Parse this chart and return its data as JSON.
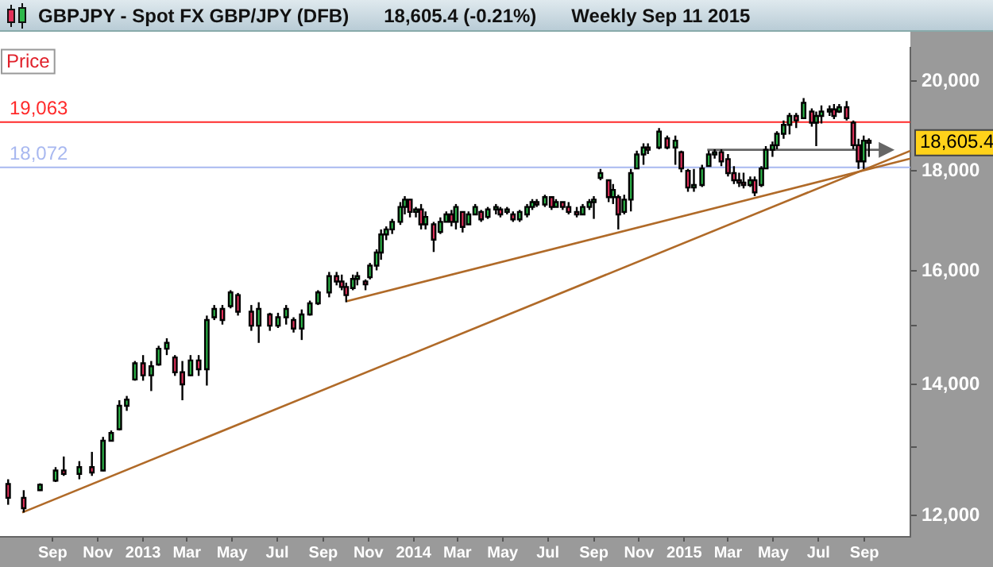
{
  "chart_data": {
    "type": "candlestick",
    "title": "GBPJPY - Spot FX GBP/JPY (DFB)",
    "subtitle": "18,605.4 (-0.21%)",
    "ylabel": "Price",
    "annotations": [
      "Weekly  Sep 11 2015",
      "18,605.4"
    ],
    "x": [
      "2012-07-03",
      "2012-07-24",
      "2012-08-15",
      "2012-09-05",
      "2012-09-16",
      "2012-10-07",
      "2012-10-24",
      "2012-11-08",
      "2012-11-19",
      "2012-11-30",
      "2012-12-10",
      "2012-12-21",
      "2013-01-01",
      "2013-01-12",
      "2013-01-22",
      "2013-02-02",
      "2013-02-13",
      "2013-02-23",
      "2013-03-06",
      "2013-03-17",
      "2013-03-28",
      "2013-04-07",
      "2013-04-18",
      "2013-04-29",
      "2013-05-09",
      "2013-05-27",
      "2013-06-06",
      "2013-06-21",
      "2013-07-02",
      "2013-07-13",
      "2013-07-23",
      "2013-08-03",
      "2013-08-14",
      "2013-08-25",
      "2013-09-09",
      "2013-09-19",
      "2013-09-26",
      "2013-10-02",
      "2013-10-11",
      "2013-10-17",
      "2013-10-28",
      "2013-11-03",
      "2013-11-12",
      "2013-11-18",
      "2013-11-25",
      "2013-12-03",
      "2013-12-14",
      "2013-12-20",
      "2013-12-27",
      "2014-01-04",
      "2014-01-11",
      "2014-01-17",
      "2014-01-28",
      "2014-02-06",
      "2014-02-14",
      "2014-02-21",
      "2014-02-27",
      "2014-03-08",
      "2014-03-16",
      "2014-03-25",
      "2014-04-02",
      "2014-04-11",
      "2014-04-22",
      "2014-04-28",
      "2014-05-07",
      "2014-05-15",
      "2014-05-24",
      "2014-06-03",
      "2014-06-10",
      "2014-06-16",
      "2014-06-27",
      "2014-07-06",
      "2014-07-12",
      "2014-07-21",
      "2014-07-29",
      "2014-08-09",
      "2014-08-17",
      "2014-08-26",
      "2014-09-01",
      "2014-09-10",
      "2014-09-21",
      "2014-09-27",
      "2014-10-04",
      "2014-10-12",
      "2014-10-21",
      "2014-10-29",
      "2014-11-07",
      "2014-11-13",
      "2014-11-28",
      "2014-12-09",
      "2014-12-20",
      "2014-12-28",
      "2015-01-06",
      "2015-01-14",
      "2015-01-25",
      "2015-02-03",
      "2015-02-11",
      "2015-02-20",
      "2015-03-01",
      "2015-03-09",
      "2015-03-16",
      "2015-03-22",
      "2015-03-31",
      "2015-04-06",
      "2015-04-15",
      "2015-04-21",
      "2015-04-30",
      "2015-05-06",
      "2015-05-15",
      "2015-05-23",
      "2015-06-01",
      "2015-06-11",
      "2015-06-22",
      "2015-06-28",
      "2015-07-05",
      "2015-07-16",
      "2015-07-22",
      "2015-07-29",
      "2015-08-08",
      "2015-08-17",
      "2015-08-24",
      "2015-08-31",
      "2015-09-07"
    ],
    "ohlc": [
      [
        12450,
        12520,
        12150,
        12250
      ],
      [
        12250,
        12360,
        12040,
        12100
      ],
      [
        12360,
        12460,
        12350,
        12440
      ],
      [
        12500,
        12700,
        12480,
        12650
      ],
      [
        12650,
        12860,
        12570,
        12600
      ],
      [
        12600,
        12790,
        12520,
        12700
      ],
      [
        12700,
        12930,
        12570,
        12620
      ],
      [
        12650,
        13160,
        12640,
        13100
      ],
      [
        13100,
        13260,
        13090,
        13220
      ],
      [
        13280,
        13740,
        13260,
        13650
      ],
      [
        13650,
        13810,
        13570,
        13750
      ],
      [
        14080,
        14390,
        14060,
        14350
      ],
      [
        14350,
        14490,
        14060,
        14150
      ],
      [
        14150,
        14390,
        13890,
        14300
      ],
      [
        14330,
        14650,
        14310,
        14600
      ],
      [
        14600,
        14780,
        14490,
        14700
      ],
      [
        14450,
        14490,
        14140,
        14200
      ],
      [
        14200,
        14390,
        13740,
        14000
      ],
      [
        14150,
        14490,
        14140,
        14400
      ],
      [
        14400,
        14490,
        14140,
        14250
      ],
      [
        14250,
        15180,
        13980,
        15100
      ],
      [
        15150,
        15370,
        15100,
        15300
      ],
      [
        15300,
        15370,
        15020,
        15100
      ],
      [
        15350,
        15640,
        15310,
        15600
      ],
      [
        15550,
        15590,
        15180,
        15250
      ],
      [
        15250,
        15370,
        14910,
        15000
      ],
      [
        15000,
        15420,
        14700,
        15300
      ],
      [
        15200,
        15230,
        14910,
        15000
      ],
      [
        15000,
        15230,
        14960,
        15150
      ],
      [
        15150,
        15370,
        15020,
        15300
      ],
      [
        15100,
        15150,
        14880,
        14950
      ],
      [
        14950,
        15290,
        14750,
        15200
      ],
      [
        15200,
        15450,
        15180,
        15400
      ],
      [
        15400,
        15640,
        15370,
        15600
      ],
      [
        15600,
        15980,
        15510,
        15900
      ],
      [
        15900,
        15980,
        15730,
        15800
      ],
      [
        15800,
        15930,
        15640,
        15700
      ],
      [
        15700,
        15780,
        15420,
        15550
      ],
      [
        15680,
        15930,
        15640,
        15850
      ],
      [
        15850,
        15980,
        15730,
        15900
      ],
      [
        15800,
        15840,
        15640,
        15750
      ],
      [
        15880,
        16150,
        15840,
        16100
      ],
      [
        16100,
        16410,
        16010,
        16350
      ],
      [
        16350,
        16800,
        16210,
        16700
      ],
      [
        16700,
        16860,
        16590,
        16800
      ],
      [
        16800,
        17010,
        16710,
        16950
      ],
      [
        16950,
        17350,
        16890,
        17250
      ],
      [
        17250,
        17470,
        17100,
        17400
      ],
      [
        17400,
        17410,
        17040,
        17150
      ],
      [
        17150,
        17250,
        17040,
        17200
      ],
      [
        17200,
        17310,
        16800,
        16900
      ],
      [
        16900,
        17160,
        16800,
        17050
      ],
      [
        16900,
        16950,
        16360,
        16600
      ],
      [
        16750,
        17040,
        16710,
        16950
      ],
      [
        16950,
        17160,
        16950,
        17100
      ],
      [
        17100,
        17190,
        16860,
        16950
      ],
      [
        16950,
        17310,
        16800,
        17250
      ],
      [
        17150,
        17160,
        16740,
        16850
      ],
      [
        16900,
        17160,
        16890,
        17100
      ],
      [
        17100,
        17310,
        17100,
        17250
      ],
      [
        17150,
        17190,
        16950,
        17000
      ],
      [
        17050,
        17250,
        17010,
        17200
      ],
      [
        17200,
        17310,
        17100,
        17250
      ],
      [
        17200,
        17250,
        17040,
        17100
      ],
      [
        17150,
        17250,
        17100,
        17200
      ],
      [
        17100,
        17160,
        16950,
        17000
      ],
      [
        17000,
        17190,
        16950,
        17150
      ],
      [
        17100,
        17310,
        17040,
        17250
      ],
      [
        17250,
        17410,
        17190,
        17350
      ],
      [
        17350,
        17410,
        17250,
        17300
      ],
      [
        17300,
        17500,
        17250,
        17450
      ],
      [
        17450,
        17470,
        17190,
        17250
      ],
      [
        17250,
        17410,
        17250,
        17350
      ],
      [
        17350,
        17350,
        17190,
        17250
      ],
      [
        17250,
        17350,
        17100,
        17150
      ],
      [
        17150,
        17250,
        17040,
        17100
      ],
      [
        17100,
        17310,
        17100,
        17250
      ],
      [
        17250,
        17410,
        17190,
        17350
      ],
      [
        17350,
        17470,
        17010,
        17400
      ],
      [
        17850,
        18040,
        17800,
        17950
      ],
      [
        17800,
        17810,
        17350,
        17450
      ],
      [
        17450,
        17720,
        17310,
        17600
      ],
      [
        17450,
        17500,
        16800,
        17100
      ],
      [
        17150,
        17500,
        17100,
        17400
      ],
      [
        17400,
        18040,
        17160,
        17950
      ],
      [
        18050,
        18430,
        18040,
        18350
      ],
      [
        18350,
        18590,
        18130,
        18500
      ],
      [
        18500,
        18590,
        18360,
        18450
      ],
      [
        18500,
        18930,
        18460,
        18850
      ],
      [
        18700,
        18760,
        18460,
        18500
      ],
      [
        18500,
        18760,
        18130,
        18650
      ],
      [
        18400,
        18430,
        17970,
        18050
      ],
      [
        18000,
        18040,
        17560,
        17650
      ],
      [
        17650,
        18040,
        17560,
        17700
      ],
      [
        17700,
        18130,
        17660,
        18050
      ],
      [
        18100,
        18430,
        18100,
        18350
      ],
      [
        18350,
        18460,
        18260,
        18400
      ],
      [
        18400,
        18460,
        18100,
        18200
      ],
      [
        18250,
        18360,
        17880,
        17950
      ],
      [
        17950,
        18100,
        17720,
        17800
      ],
      [
        17800,
        17960,
        17660,
        17750
      ],
      [
        17750,
        17960,
        17630,
        17700
      ],
      [
        17700,
        17880,
        17660,
        17800
      ],
      [
        17800,
        17880,
        17470,
        17550
      ],
      [
        17700,
        18100,
        17660,
        18050
      ],
      [
        18050,
        18530,
        18040,
        18450
      ],
      [
        18450,
        18630,
        18300,
        18550
      ],
      [
        18550,
        18860,
        18460,
        18800
      ],
      [
        18800,
        19100,
        18690,
        19000
      ],
      [
        19000,
        19270,
        18790,
        19200
      ],
      [
        19200,
        19270,
        18930,
        19100
      ],
      [
        19150,
        19610,
        19130,
        19500
      ],
      [
        19300,
        19370,
        18960,
        19050
      ],
      [
        19050,
        19300,
        18530,
        19200
      ],
      [
        19200,
        19440,
        19030,
        19300
      ],
      [
        19300,
        19440,
        19200,
        19350
      ],
      [
        19350,
        19470,
        19130,
        19200
      ],
      [
        19300,
        19470,
        19270,
        19400
      ],
      [
        19400,
        19540,
        19100,
        19150
      ],
      [
        19050,
        19100,
        18460,
        18550
      ],
      [
        18550,
        18690,
        18040,
        18200
      ],
      [
        18200,
        18760,
        18040,
        18650
      ],
      [
        18650,
        18700,
        18300,
        18605.4
      ]
    ],
    "series": [
      {
        "type": "line",
        "x": [
          "2012-07-22",
          "2015-11-02"
        ],
        "values": [
          12040,
          18430
        ],
        "color": "#b06a28"
      },
      {
        "type": "line",
        "x": [
          "2013-10-03",
          "2015-11-02"
        ],
        "values": [
          15440,
          18260
        ],
        "color": "#b06a28"
      },
      {
        "type": "line",
        "x": [
          "2015-02-01",
          "2015-10-01"
        ],
        "values": [
          18450,
          18450
        ],
        "color": "#666666"
      }
    ],
    "ref_lines": [
      {
        "axis": "y",
        "value": 19063,
        "label": "19,063",
        "color": "#ff2a2a"
      },
      {
        "axis": "y",
        "value": 18072,
        "label": "18,072",
        "color": "#a8b8f0"
      }
    ],
    "xlim": [
      "2012-06-22",
      "2015-11-02"
    ],
    "xticks": [
      {
        "value": "2012-09",
        "label": "Sep"
      },
      {
        "value": "2012-11",
        "label": "Nov"
      },
      {
        "value": "2013-01",
        "label": "2013"
      },
      {
        "value": "2013-03",
        "label": "Mar"
      },
      {
        "value": "2013-05",
        "label": "May"
      },
      {
        "value": "2013-07",
        "label": "Jul"
      },
      {
        "value": "2013-09",
        "label": "Sep"
      },
      {
        "value": "2013-11",
        "label": "Nov"
      },
      {
        "value": "2014-01",
        "label": "2014"
      },
      {
        "value": "2014-03",
        "label": "Mar"
      },
      {
        "value": "2014-05",
        "label": "May"
      },
      {
        "value": "2014-07",
        "label": "Jul"
      },
      {
        "value": "2014-09",
        "label": "Sep"
      },
      {
        "value": "2014-11",
        "label": "Nov"
      },
      {
        "value": "2015-01",
        "label": "2015"
      },
      {
        "value": "2015-03",
        "label": "Mar"
      },
      {
        "value": "2015-05",
        "label": "May"
      },
      {
        "value": "2015-07",
        "label": "Jul"
      },
      {
        "value": "2015-09",
        "label": "Sep"
      }
    ],
    "ylim": [
      11700,
      20800
    ],
    "yticks": [
      {
        "value": 12000,
        "label": "12,000"
      },
      {
        "value": 13000,
        "label": null
      },
      {
        "value": 14000,
        "label": "14,000"
      },
      {
        "value": 15000,
        "label": null
      },
      {
        "value": 16000,
        "label": "16,000"
      },
      {
        "value": 18000,
        "label": "18,000"
      },
      {
        "value": 20000,
        "label": "20,000"
      }
    ],
    "log": true,
    "grid": false,
    "legend": false
  }
}
